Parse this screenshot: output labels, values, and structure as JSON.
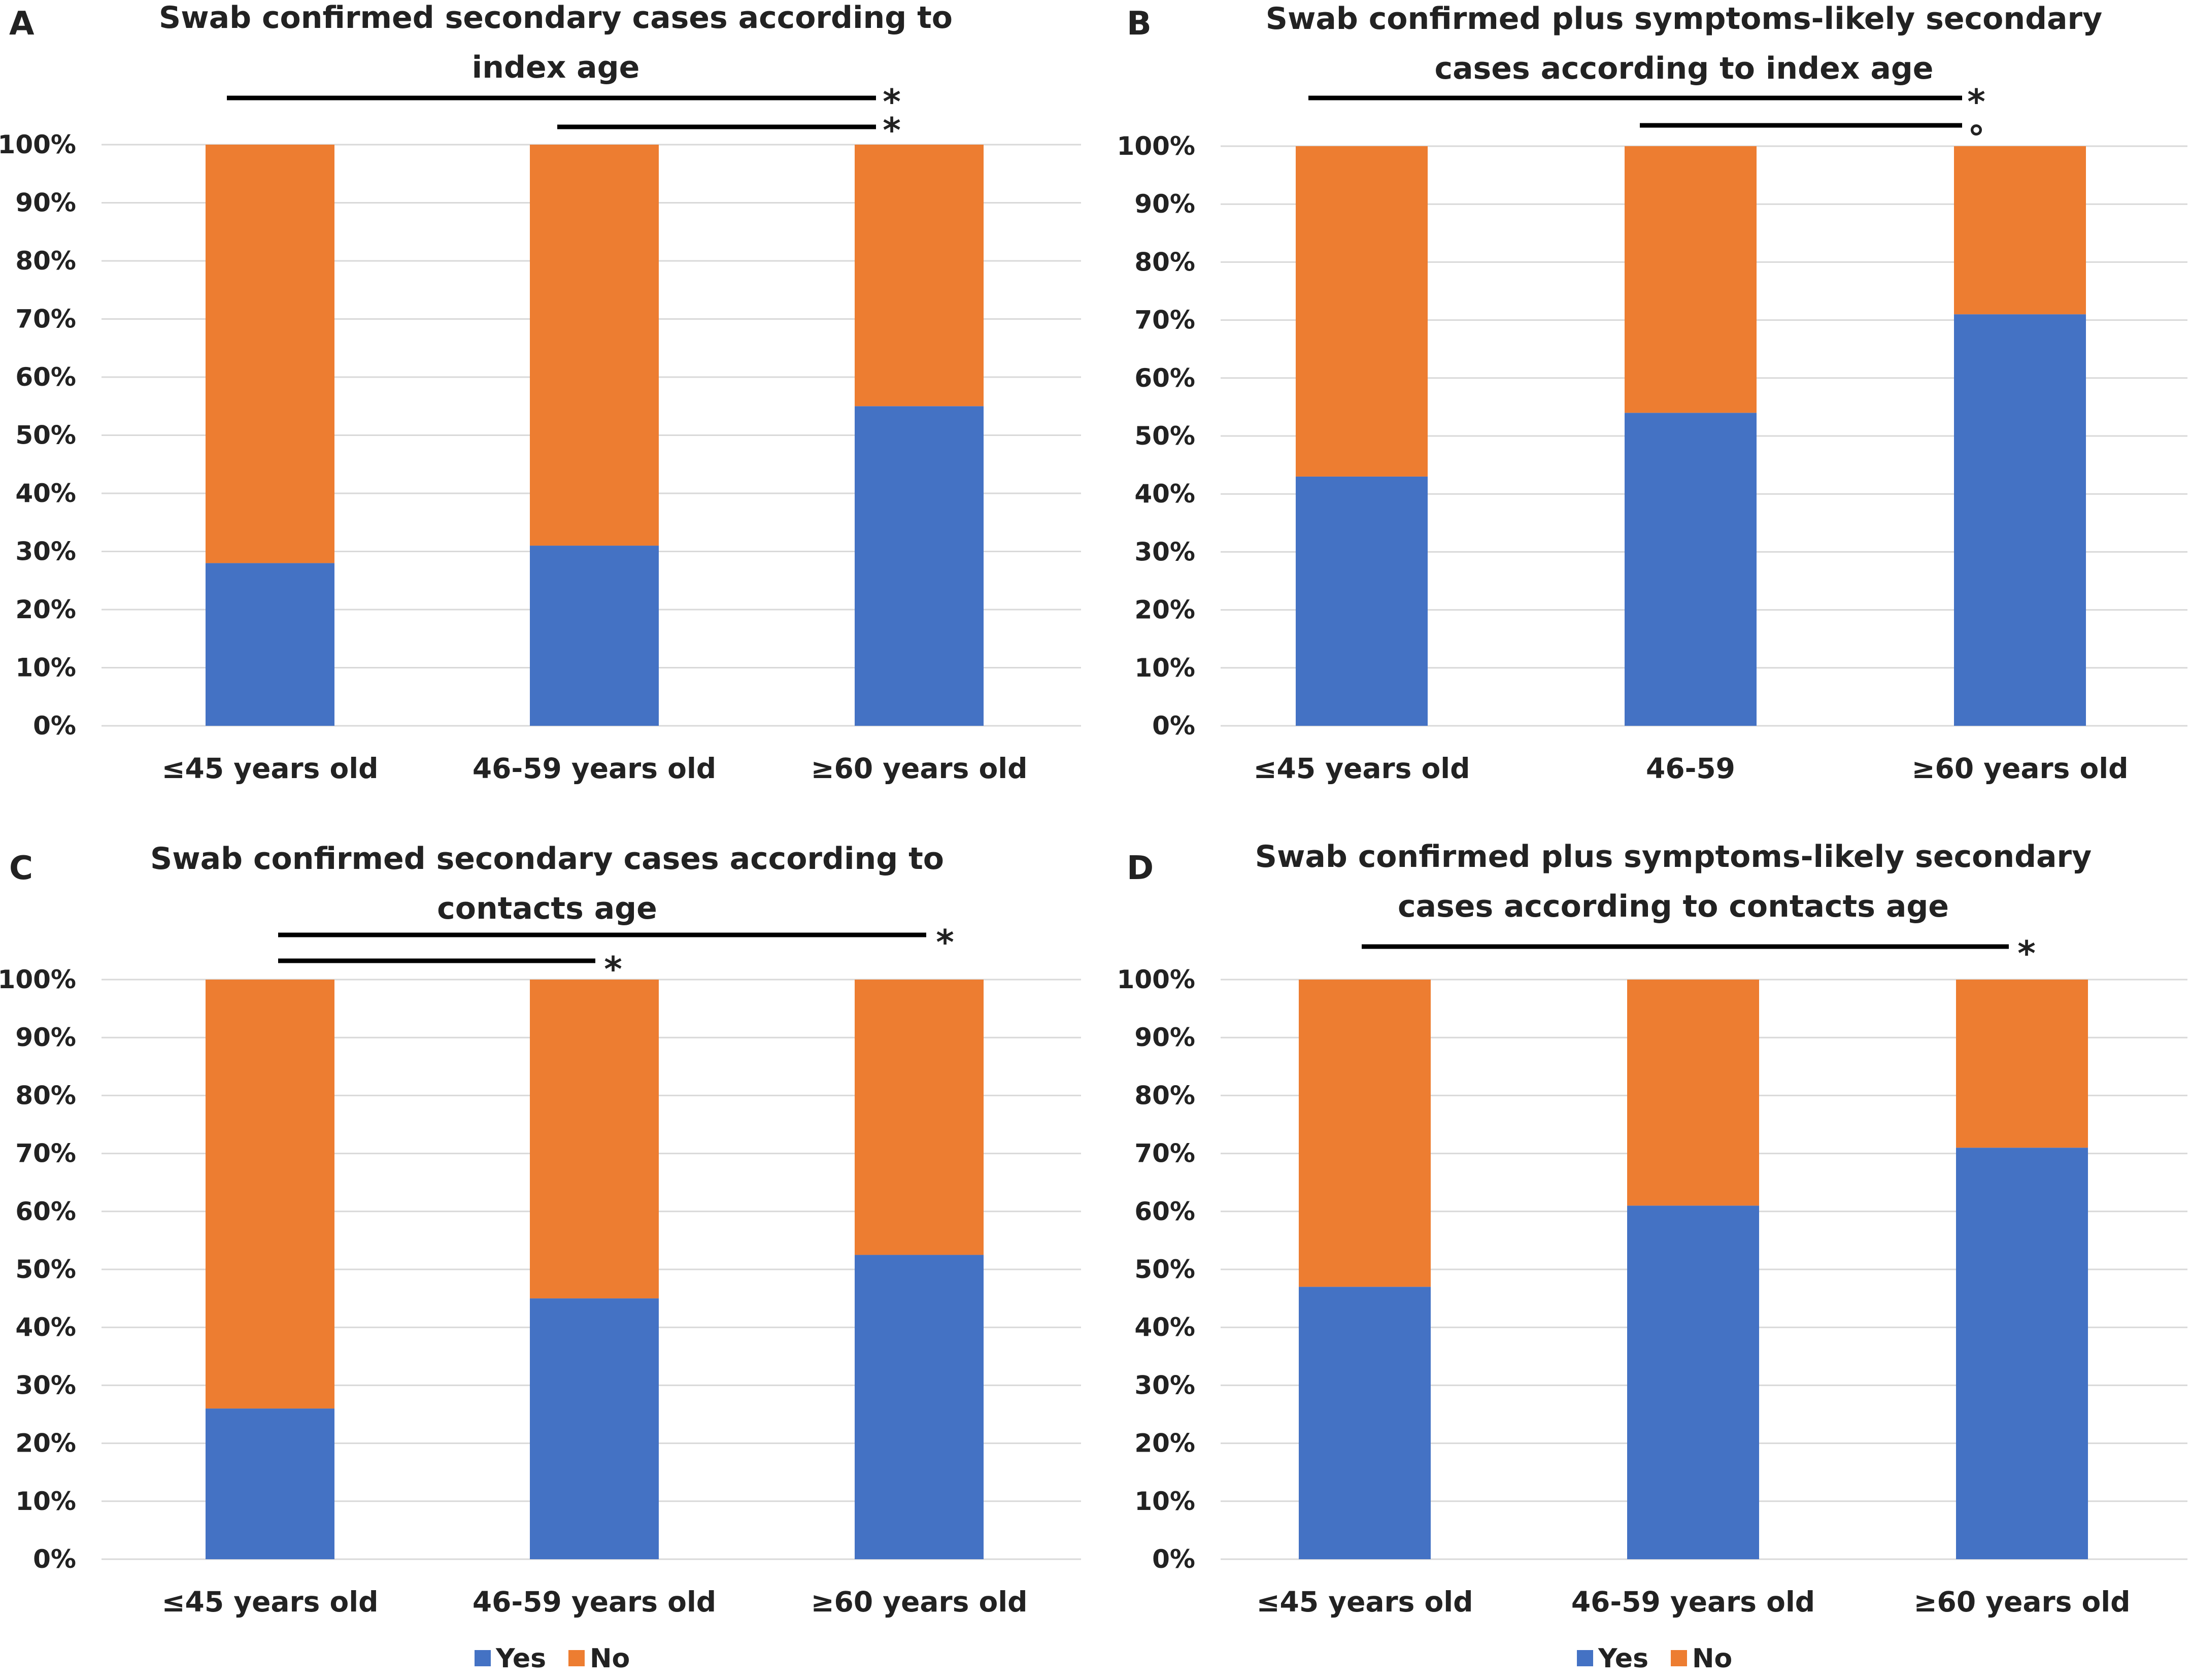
{
  "colors": {
    "yes": "#4472C4",
    "no": "#ED7D31"
  },
  "chart_data": [
    {
      "panel": "A",
      "type": "bar",
      "stacked": true,
      "percent": true,
      "title_lines": [
        "Swab confirmed secondary cases according to",
        "index age"
      ],
      "categories": [
        "≤45 years old",
        "46-59 years old",
        "≥60 years old"
      ],
      "yticks": [
        "0%",
        "10%",
        "20%",
        "30%",
        "40%",
        "50%",
        "60%",
        "70%",
        "80%",
        "90%",
        "100%"
      ],
      "ylim": [
        0,
        100
      ],
      "series": [
        {
          "name": "Yes",
          "values": [
            28,
            31,
            55
          ]
        },
        {
          "name": "No",
          "values": [
            72,
            69,
            45
          ]
        }
      ],
      "significance": [
        {
          "from": 0,
          "to": 2,
          "mark": "*"
        },
        {
          "from": 1,
          "to": 2,
          "mark": "*"
        }
      ]
    },
    {
      "panel": "B",
      "type": "bar",
      "stacked": true,
      "percent": true,
      "title_lines": [
        "Swab confirmed plus symptoms-likely secondary",
        "cases according to index age"
      ],
      "categories": [
        "≤45 years old",
        "46-59",
        "≥60 years old"
      ],
      "yticks": [
        "0%",
        "10%",
        "20%",
        "30%",
        "40%",
        "50%",
        "60%",
        "70%",
        "80%",
        "90%",
        "100%"
      ],
      "ylim": [
        0,
        100
      ],
      "series": [
        {
          "name": "Yes",
          "values": [
            43,
            54,
            71
          ]
        },
        {
          "name": "No",
          "values": [
            57,
            46,
            29
          ]
        }
      ],
      "significance": [
        {
          "from": 0,
          "to": 2,
          "mark": "*"
        },
        {
          "from": 1,
          "to": 2,
          "mark": "°"
        }
      ]
    },
    {
      "panel": "C",
      "type": "bar",
      "stacked": true,
      "percent": true,
      "title_lines": [
        "Swab confirmed secondary cases according to",
        "contacts age"
      ],
      "categories": [
        "≤45 years old",
        "46-59 years old",
        "≥60 years old"
      ],
      "yticks": [
        "0%",
        "10%",
        "20%",
        "30%",
        "40%",
        "50%",
        "60%",
        "70%",
        "80%",
        "90%",
        "100%"
      ],
      "ylim": [
        0,
        100
      ],
      "series": [
        {
          "name": "Yes",
          "values": [
            26,
            45,
            52.5
          ]
        },
        {
          "name": "No",
          "values": [
            74,
            55,
            47.5
          ]
        }
      ],
      "significance": [
        {
          "from": 0,
          "to": 2,
          "mark": "*"
        },
        {
          "from": 0,
          "to": 1,
          "mark": "*"
        }
      ],
      "legend": [
        "Yes",
        "No"
      ]
    },
    {
      "panel": "D",
      "type": "bar",
      "stacked": true,
      "percent": true,
      "title_lines": [
        "Swab confirmed plus symptoms-likely secondary",
        "cases according to contacts age"
      ],
      "categories": [
        "≤45 years old",
        "46-59 years old",
        "≥60 years old"
      ],
      "yticks": [
        "0%",
        "10%",
        "20%",
        "30%",
        "40%",
        "50%",
        "60%",
        "70%",
        "80%",
        "90%",
        "100%"
      ],
      "ylim": [
        0,
        100
      ],
      "series": [
        {
          "name": "Yes",
          "values": [
            47,
            61,
            71
          ]
        },
        {
          "name": "No",
          "values": [
            53,
            39,
            29
          ]
        }
      ],
      "significance": [
        {
          "from": 0,
          "to": 2,
          "mark": "*"
        }
      ],
      "legend": [
        "Yes",
        "No"
      ]
    }
  ]
}
